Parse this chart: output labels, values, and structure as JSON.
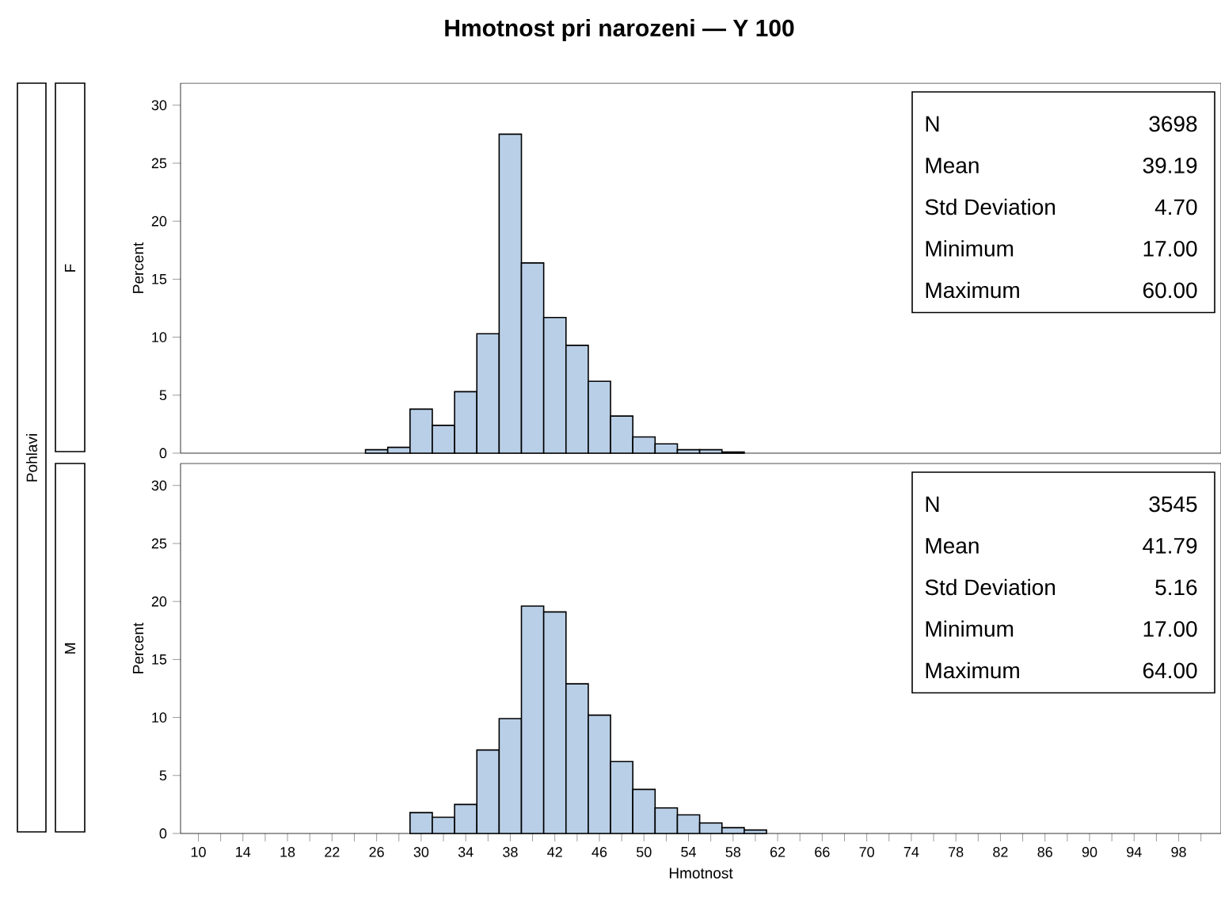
{
  "chart_data": [
    {
      "type": "histogram",
      "title": "Hmotnost pri narozeni — Y 100",
      "subtitle": "F",
      "ylabel": "Percent",
      "annotations": [
        "Pohlavi",
        "N",
        "3698",
        "Mean",
        "39.19",
        "Std Deviation",
        "4.70",
        "Minimum",
        "17.00",
        "Maximum",
        "60.00"
      ],
      "bins": [
        25,
        27,
        29,
        31,
        33,
        35,
        37,
        39,
        41,
        43,
        45,
        47,
        49,
        51,
        53,
        55,
        57,
        59
      ],
      "values": [
        0.3,
        0.5,
        3.8,
        2.4,
        5.3,
        10.3,
        27.5,
        16.4,
        11.7,
        9.3,
        6.2,
        3.2,
        1.4,
        0.8,
        0.3,
        0.3,
        0.1
      ],
      "color": "#b9cfe7",
      "xlim": [
        8.4,
        101.8
      ],
      "ylim": [
        0,
        31.9
      ],
      "yticks": [
        0,
        5,
        10,
        15,
        20,
        25,
        30
      ],
      "tick_labels": "y"
    },
    {
      "type": "histogram",
      "subtitle": "M",
      "xlabel": "Hmotnost",
      "ylabel": "Percent",
      "annotations": [
        "N",
        "3545",
        "Mean",
        "41.79",
        "Std Deviation",
        "5.16",
        "Minimum",
        "17.00",
        "Maximum",
        "64.00"
      ],
      "bins": [
        29,
        31,
        33,
        35,
        37,
        39,
        41,
        43,
        45,
        47,
        49,
        51,
        53,
        55,
        57,
        59,
        61
      ],
      "values": [
        1.8,
        1.4,
        2.5,
        7.2,
        9.9,
        19.6,
        19.1,
        12.9,
        10.2,
        6.2,
        3.8,
        2.2,
        1.6,
        0.9,
        0.5,
        0.3
      ],
      "color": "#b9cfe7",
      "xlim": [
        8.4,
        101.8
      ],
      "ylim": [
        0,
        31.9
      ],
      "yticks": [
        0,
        5,
        10,
        15,
        20,
        25,
        30
      ],
      "xticks": [
        10,
        {
          "value": 12,
          "label": null
        },
        14,
        {
          "value": 16,
          "label": null
        },
        18,
        {
          "value": 20,
          "label": null
        },
        22,
        {
          "value": 24,
          "label": null
        },
        26,
        {
          "value": 28,
          "label": null
        },
        30,
        {
          "value": 32,
          "label": null
        },
        34,
        {
          "value": 36,
          "label": null
        },
        38,
        {
          "value": 40,
          "label": null
        },
        42,
        {
          "value": 44,
          "label": null
        },
        46,
        {
          "value": 48,
          "label": null
        },
        50,
        {
          "value": 52,
          "label": null
        },
        54,
        {
          "value": 56,
          "label": null
        },
        58,
        {
          "value": 60,
          "label": null
        },
        62,
        {
          "value": 64,
          "label": null
        },
        66,
        {
          "value": 68,
          "label": null
        },
        70,
        {
          "value": 72,
          "label": null
        },
        74,
        {
          "value": 76,
          "label": null
        },
        78,
        {
          "value": 80,
          "label": null
        },
        82,
        {
          "value": 84,
          "label": null
        },
        86,
        {
          "value": 88,
          "label": null
        },
        90,
        {
          "value": 92,
          "label": null
        },
        94,
        {
          "value": 96,
          "label": null
        },
        98,
        {
          "value": 100,
          "label": null
        }
      ]
    }
  ]
}
